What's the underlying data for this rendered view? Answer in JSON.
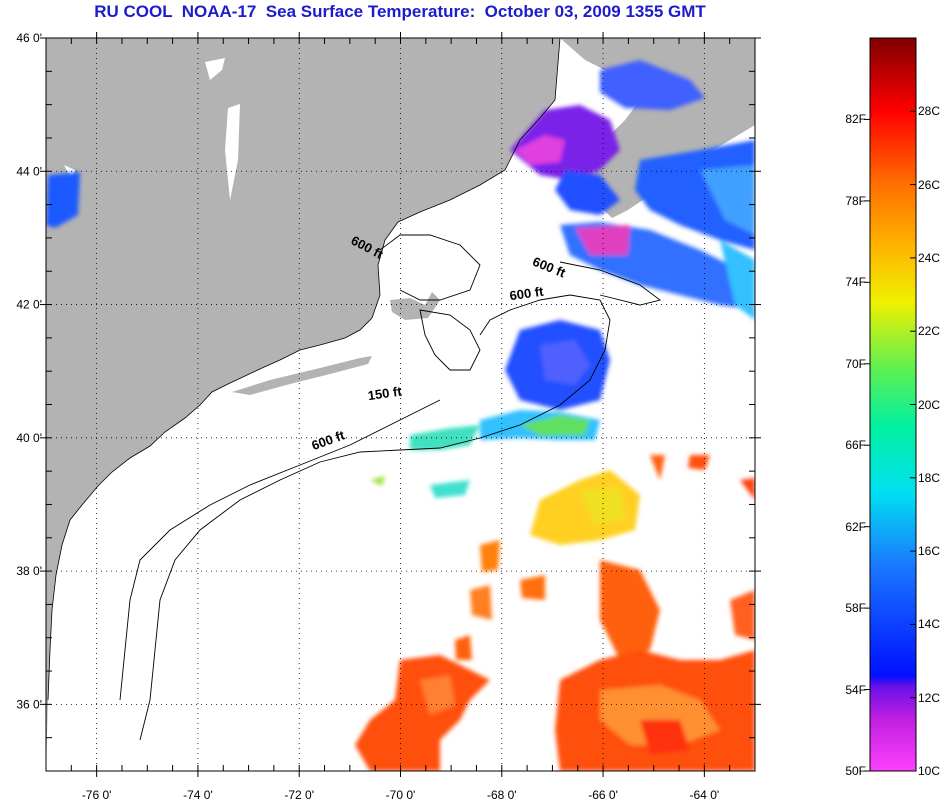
{
  "title": "RU COOL  NOAA-17  Sea Surface Temperature:  October 03, 2009 1355 GMT",
  "map": {
    "lon_range": [
      -77,
      -63
    ],
    "lat_range": [
      35,
      46
    ],
    "lat_ticks": [
      {
        "value": 46,
        "label": "46 0'"
      },
      {
        "value": 44,
        "label": "44 0'"
      },
      {
        "value": 42,
        "label": "42 0'"
      },
      {
        "value": 40,
        "label": "40 0'"
      },
      {
        "value": 38,
        "label": "38 0'"
      },
      {
        "value": 36,
        "label": "36 0'"
      }
    ],
    "lon_ticks": [
      {
        "value": -76,
        "label": "-76 0'"
      },
      {
        "value": -74,
        "label": "-74 0'"
      },
      {
        "value": -72,
        "label": "-72 0'"
      },
      {
        "value": -70,
        "label": "-70 0'"
      },
      {
        "value": -68,
        "label": "-68 0'"
      },
      {
        "value": -66,
        "label": "-66 0'"
      },
      {
        "value": -64,
        "label": "-64 0'"
      }
    ],
    "contour_labels": [
      {
        "text": "600 ft",
        "lon": -70.7,
        "lat": 42.8
      },
      {
        "text": "600 ft",
        "lon": -67.1,
        "lat": 42.5
      },
      {
        "text": "600 ft",
        "lon": -67.5,
        "lat": 42.1
      },
      {
        "text": "150 ft",
        "lon": -70.3,
        "lat": 40.6
      },
      {
        "text": "600 ft",
        "lon": -71.4,
        "lat": 39.9
      }
    ],
    "land_color": "#b3b3b3",
    "ocean_color": "#ffffff",
    "grid": true
  },
  "colorbar": {
    "fahrenheit_labels": [
      "82F",
      "78F",
      "74F",
      "70F",
      "66F",
      "62F",
      "58F",
      "54F",
      "50F"
    ],
    "celsius_labels": [
      "28C",
      "26C",
      "24C",
      "22C",
      "20C",
      "18C",
      "16C",
      "14C",
      "12C",
      "10C"
    ],
    "range_c": [
      10,
      30
    ]
  }
}
